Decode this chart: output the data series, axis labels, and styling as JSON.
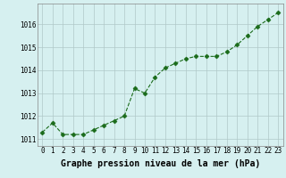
{
  "x": [
    0,
    1,
    2,
    3,
    4,
    5,
    6,
    7,
    8,
    9,
    10,
    11,
    12,
    13,
    14,
    15,
    16,
    17,
    18,
    19,
    20,
    21,
    22,
    23
  ],
  "y": [
    1011.3,
    1011.7,
    1011.2,
    1011.2,
    1011.2,
    1011.4,
    1011.6,
    1011.8,
    1012.0,
    1013.2,
    1013.0,
    1013.7,
    1014.1,
    1014.3,
    1014.5,
    1014.6,
    1014.6,
    1014.6,
    1014.8,
    1015.1,
    1015.5,
    1015.9,
    1016.2,
    1016.5
  ],
  "line_color": "#1a6b1a",
  "marker": "D",
  "marker_size": 2.5,
  "bg_color": "#d6f0f0",
  "grid_color": "#b0c8c8",
  "xlabel": "Graphe pression niveau de la mer (hPa)",
  "xlabel_fontsize": 7,
  "yticks": [
    1011,
    1012,
    1013,
    1014,
    1015,
    1016
  ],
  "ylim": [
    1010.7,
    1016.9
  ],
  "xlim": [
    -0.5,
    23.5
  ],
  "xticks": [
    0,
    1,
    2,
    3,
    4,
    5,
    6,
    7,
    8,
    9,
    10,
    11,
    12,
    13,
    14,
    15,
    16,
    17,
    18,
    19,
    20,
    21,
    22,
    23
  ],
  "tick_fontsize": 5.5
}
